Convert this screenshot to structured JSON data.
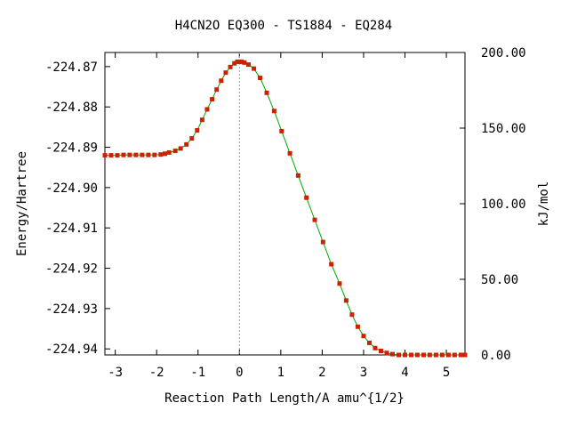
{
  "chart_data": {
    "type": "line",
    "title": "H4CN2O   EQ300 - TS1884 - EQ284",
    "xlabel": "Reaction Path Length/A amu^{1/2}",
    "ylabel": "Energy/Hartree",
    "y2label": "kJ/mol",
    "xlim": [
      -3.25,
      5.45
    ],
    "ylim": [
      -224.9415,
      -224.8665
    ],
    "y2lim": [
      0.0,
      200.0
    ],
    "x_ticks": [
      -3,
      -2,
      -1,
      0,
      1,
      2,
      3,
      4,
      5
    ],
    "x_tick_labels": [
      "-3",
      "-2",
      "-1",
      "0",
      "1",
      "2",
      "3",
      "4",
      "5"
    ],
    "y_ticks": [
      -224.87,
      -224.88,
      -224.89,
      -224.9,
      -224.91,
      -224.92,
      -224.93,
      -224.94
    ],
    "y_tick_labels": [
      "-224.87",
      "-224.88",
      "-224.89",
      "-224.90",
      "-224.91",
      "-224.92",
      "-224.93",
      "-224.94"
    ],
    "y2_ticks": [
      200,
      150,
      100,
      50,
      0
    ],
    "y2_tick_labels": [
      "200.00",
      "150.00",
      "100.00",
      "50.00",
      "0.00"
    ],
    "ts_marker_x": 0.0,
    "grid": false,
    "colors": {
      "line": "#00aa00",
      "marker": "#cc2200",
      "ts_line": "#999999"
    },
    "series": [
      {
        "x": [
          -3.25,
          -3.1,
          -2.95,
          -2.8,
          -2.65,
          -2.5,
          -2.35,
          -2.2,
          -2.05,
          -1.9,
          -1.8,
          -1.7,
          -1.55,
          -1.42,
          -1.28,
          -1.15,
          -1.02,
          -0.9,
          -0.78,
          -0.66,
          -0.55,
          -0.44,
          -0.33,
          -0.22,
          -0.12,
          -0.05,
          0.0,
          0.05,
          0.12,
          0.22,
          0.35,
          0.5,
          0.66,
          0.84,
          1.02,
          1.22,
          1.42,
          1.62,
          1.82,
          2.02,
          2.22,
          2.42,
          2.58,
          2.72,
          2.86,
          3.0,
          3.14,
          3.28,
          3.42,
          3.56,
          3.7,
          3.85,
          4.0,
          4.15,
          4.3,
          4.45,
          4.6,
          4.75,
          4.9,
          5.05,
          5.2,
          5.35,
          5.45
        ],
        "y": [
          -224.892,
          -224.892,
          -224.892,
          -224.8919,
          -224.8919,
          -224.8919,
          -224.8919,
          -224.8919,
          -224.8919,
          -224.8918,
          -224.8916,
          -224.8913,
          -224.8909,
          -224.8903,
          -224.8893,
          -224.8878,
          -224.8858,
          -224.8832,
          -224.8806,
          -224.8781,
          -224.8757,
          -224.8735,
          -224.8715,
          -224.8701,
          -224.8692,
          -224.8688,
          -224.8688,
          -224.8688,
          -224.869,
          -224.8695,
          -224.8705,
          -224.8728,
          -224.8765,
          -224.881,
          -224.886,
          -224.8915,
          -224.897,
          -224.9025,
          -224.908,
          -224.9135,
          -224.919,
          -224.9238,
          -224.928,
          -224.9315,
          -224.9345,
          -224.9368,
          -224.9385,
          -224.9398,
          -224.9405,
          -224.941,
          -224.9413,
          -224.9415,
          -224.9415,
          -224.9415,
          -224.9415,
          -224.9415,
          -224.9415,
          -224.9415,
          -224.9415,
          -224.9415,
          -224.9415,
          -224.9415,
          -224.9415
        ]
      }
    ]
  }
}
